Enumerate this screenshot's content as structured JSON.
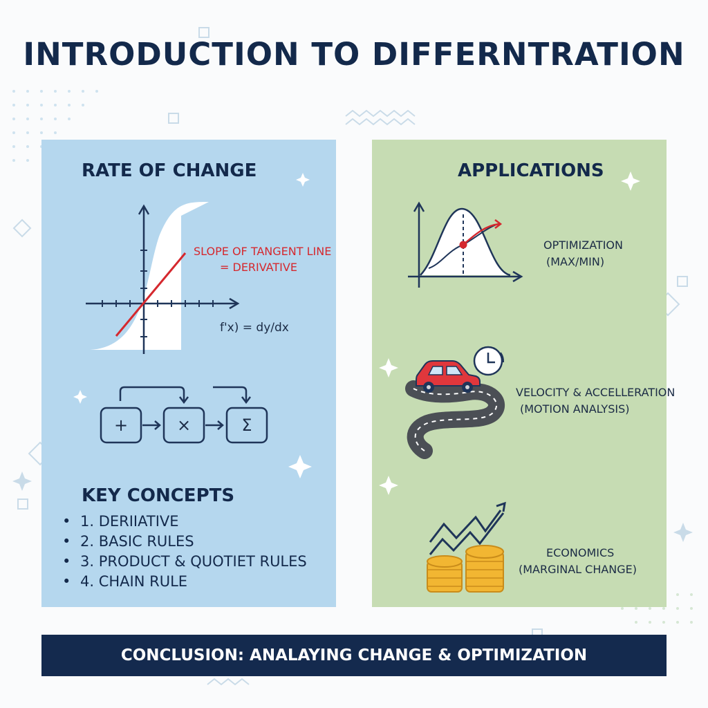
{
  "title": "INTRODUCTION TO DIFFERNTRATION",
  "left": {
    "heading": "RATE OF CHANGE",
    "slope_label_line1": "SLOPE OF TANGENT LINE",
    "slope_label_line2": "= DERIVATIVE",
    "formula": "f'x) = dy/dx",
    "flow_symbols": [
      "+",
      "×",
      "Σ"
    ],
    "key_heading": "KEY CONCEPTS",
    "key_concepts": [
      "1. DERIIATIVE",
      "2. BASIC RULES",
      "3. PRODUCT & QUOTIET RULES",
      "4. CHAIN RULE"
    ]
  },
  "right": {
    "heading": "APPLICATIONS",
    "items": [
      {
        "line1": "OPTIMIZATION",
        "line2": "(MAX/MIN)",
        "icon": "optimization-curve-icon"
      },
      {
        "line1": "VELOCITY & ACCELLERATION",
        "line2": "(MOTION ANALYSIS)",
        "icon": "car-road-clock-icon"
      },
      {
        "line1": "ECONOMICS",
        "line2": "(MARGINAL CHANGE)",
        "icon": "coins-growth-arrow-icon"
      }
    ]
  },
  "footer": "CONCLUSION: ANALAYING CHANGE & OPTIMIZATION",
  "colors": {
    "navy": "#13294b",
    "left_panel": "#b5d7ee",
    "right_panel": "#c6dcb3",
    "accent_red": "#d5282e",
    "footer_bg": "#142a4e"
  }
}
